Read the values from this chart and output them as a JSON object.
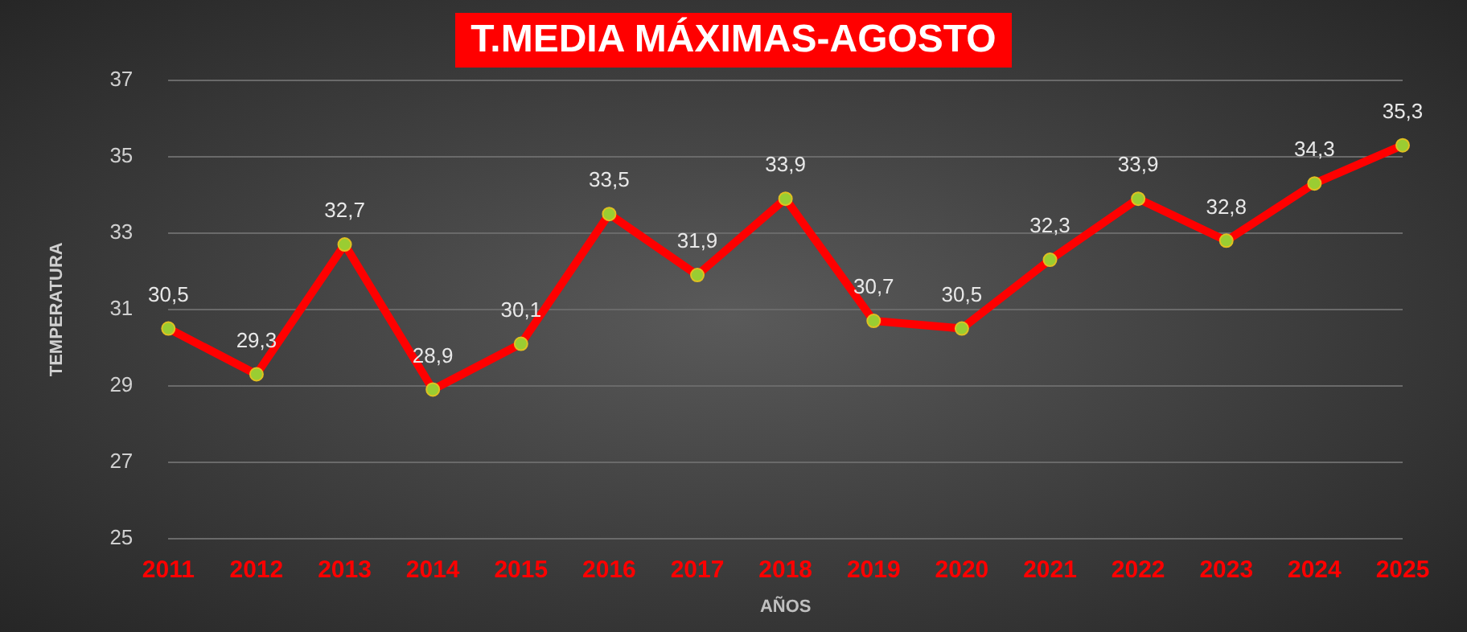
{
  "chart_data": {
    "type": "line",
    "title": "T.MEDIA MÁXIMAS-AGOSTO",
    "xlabel": "AÑOS",
    "ylabel": "TEMPERATURA",
    "categories": [
      "2011",
      "2012",
      "2013",
      "2014",
      "2015",
      "2016",
      "2017",
      "2018",
      "2019",
      "2020",
      "2021",
      "2022",
      "2023",
      "2024",
      "2025"
    ],
    "series": [
      {
        "color": "#ff0000",
        "values": [
          30.5,
          29.3,
          32.7,
          28.9,
          30.1,
          33.5,
          31.9,
          33.9,
          30.7,
          30.5,
          32.3,
          33.9,
          32.8,
          34.3,
          35.3
        ],
        "value_labels": [
          "30,5",
          "29,3",
          "32,7",
          "28,9",
          "30,1",
          "33,5",
          "31,9",
          "33,9",
          "30,7",
          "30,5",
          "32,3",
          "33,9",
          "32,8",
          "34,3",
          "35,3"
        ]
      }
    ],
    "ylim": [
      25,
      37
    ],
    "yticks": [
      25,
      27,
      29,
      31,
      33,
      35,
      37
    ],
    "grid": "y",
    "legend": false,
    "marker": "circle",
    "line_style": "solid"
  }
}
